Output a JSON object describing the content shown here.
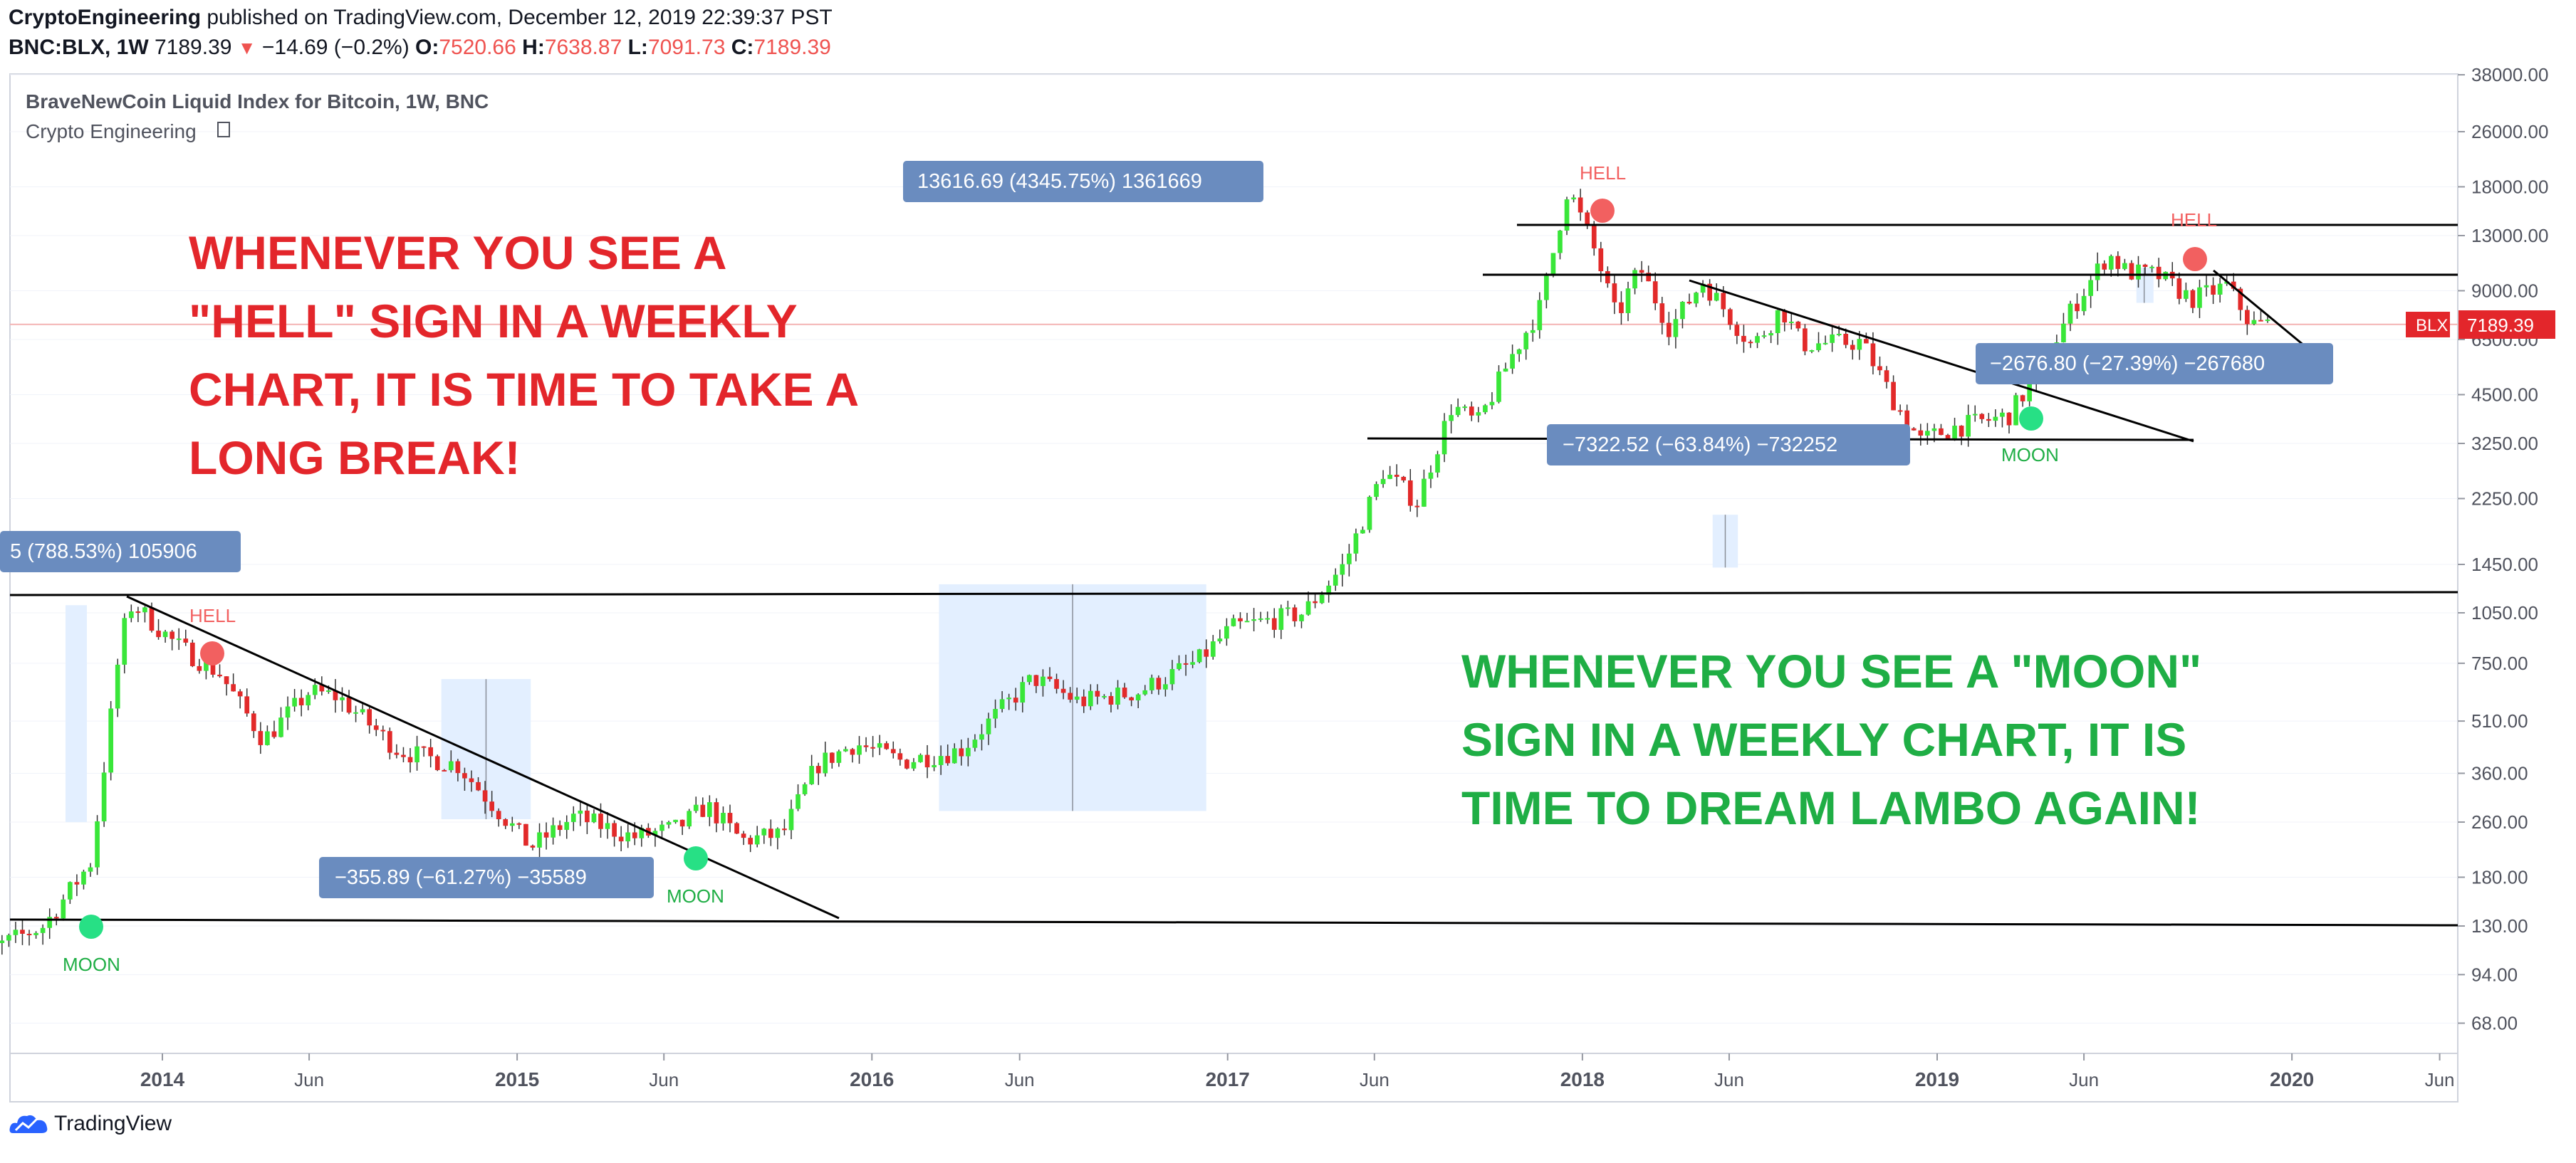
{
  "header": {
    "author": "CryptoEngineering",
    "published_text": "published on TradingView.com, December 12, 2019 22:39:37 PST",
    "symbol": "BNC:BLX, 1W",
    "last": "7189.39",
    "change": "−14.69 (−0.2%)",
    "open_label": "O:",
    "open": "7520.66",
    "high_label": "H:",
    "high": "7638.87",
    "low_label": "L:",
    "low": "7091.73",
    "close_label": "C:",
    "close": "7189.39"
  },
  "legend": {
    "title": "BraveNewCoin Liquid Index for Bitcoin, 1W, BNC",
    "subtitle": "Crypto Engineering"
  },
  "footer": {
    "brand": "TradingView"
  },
  "colors": {
    "up": "#39e639",
    "down": "#e22a2a",
    "red_text": "#e3262b",
    "green_text": "#1fae45",
    "moon_dot": "#27e085",
    "hell_dot": "#f26060",
    "box_fill": "#e3efff",
    "label_bg": "#6a8cbf",
    "price_tag": "#e3262b"
  },
  "annotations": {
    "hell_text": [
      "WHENEVER YOU SEE A",
      "\"HELL\" SIGN IN A WEEKLY",
      "CHART, IT IS TIME TO TAKE A",
      "LONG BREAK!"
    ],
    "moon_text": [
      "WHENEVER YOU SEE A \"MOON\"",
      "SIGN IN A WEEKLY CHART, IT IS",
      "TIME TO DREAM LAMBO AGAIN!"
    ],
    "hell_label": "HELL",
    "moon_label": "MOON",
    "range_labels": {
      "r1": "5 (788.53%) 105906",
      "r2": "13616.69 (4345.75%) 1361669",
      "r3": "−355.89 (−61.27%) −35589",
      "r4": "−7322.52 (−63.84%) −732252",
      "r5": "−2676.80 (−27.39%) −267680"
    }
  },
  "chart_data": {
    "type": "candlestick",
    "symbol_tag": "BLX",
    "last_price": 7189.39,
    "y_scale": "log",
    "y_ticks": [
      "38000.00",
      "26000.00",
      "18000.00",
      "13000.00",
      "9000.00",
      "6500.00",
      "4500.00",
      "3250.00",
      "2250.00",
      "1450.00",
      "1050.00",
      "750.00",
      "510.00",
      "360.00",
      "260.00",
      "180.00",
      "130.00",
      "94.00",
      "68.00"
    ],
    "x_ticks": [
      "2014",
      "Jun",
      "2015",
      "Jun",
      "2016",
      "Jun",
      "2017",
      "Jun",
      "2018",
      "Jun",
      "2019",
      "Jun",
      "2020",
      "Jun"
    ],
    "price_path": [
      [
        "2013-06-01",
        100
      ],
      [
        "2013-09-01",
        130
      ],
      [
        "2013-10-20",
        200
      ],
      [
        "2013-11-20",
        900
      ],
      [
        "2013-12-01",
        1120
      ],
      [
        "2014-01-15",
        850
      ],
      [
        "2014-03-01",
        700
      ],
      [
        "2014-04-15",
        450
      ],
      [
        "2014-06-01",
        620
      ],
      [
        "2014-07-01",
        600
      ],
      [
        "2014-09-01",
        420
      ],
      [
        "2014-11-01",
        380
      ],
      [
        "2015-01-15",
        220
      ],
      [
        "2015-03-01",
        270
      ],
      [
        "2015-05-01",
        235
      ],
      [
        "2015-06-15",
        250
      ],
      [
        "2015-07-15",
        290
      ],
      [
        "2015-08-20",
        230
      ],
      [
        "2015-10-01",
        240
      ],
      [
        "2015-11-05",
        380
      ],
      [
        "2015-12-15",
        440
      ],
      [
        "2016-02-01",
        390
      ],
      [
        "2016-04-01",
        420
      ],
      [
        "2016-06-15",
        680
      ],
      [
        "2016-08-01",
        580
      ],
      [
        "2016-10-01",
        620
      ],
      [
        "2016-12-01",
        760
      ],
      [
        "2017-01-05",
        950
      ],
      [
        "2017-02-15",
        1000
      ],
      [
        "2017-03-20",
        1050
      ],
      [
        "2017-05-01",
        1450
      ],
      [
        "2017-06-10",
        2700
      ],
      [
        "2017-07-15",
        2200
      ],
      [
        "2017-08-20",
        4200
      ],
      [
        "2017-09-15",
        3700
      ],
      [
        "2017-10-20",
        5800
      ],
      [
        "2017-11-20",
        8200
      ],
      [
        "2017-12-17",
        18000
      ],
      [
        "2018-01-15",
        11500
      ],
      [
        "2018-02-05",
        7500
      ],
      [
        "2018-03-01",
        10500
      ],
      [
        "2018-04-01",
        7000
      ],
      [
        "2018-05-05",
        9600
      ],
      [
        "2018-06-25",
        6200
      ],
      [
        "2018-07-25",
        8000
      ],
      [
        "2018-08-15",
        6300
      ],
      [
        "2018-10-15",
        6400
      ],
      [
        "2018-11-20",
        4200
      ],
      [
        "2018-12-15",
        3300
      ],
      [
        "2019-01-15",
        3600
      ],
      [
        "2019-03-15",
        3900
      ],
      [
        "2019-04-15",
        5200
      ],
      [
        "2019-05-20",
        8000
      ],
      [
        "2019-06-26",
        11500
      ],
      [
        "2019-07-15",
        10200
      ],
      [
        "2019-08-15",
        10000
      ],
      [
        "2019-09-20",
        8500
      ],
      [
        "2019-10-26",
        9300
      ],
      [
        "2019-11-20",
        7200
      ],
      [
        "2019-12-12",
        7190
      ]
    ]
  }
}
